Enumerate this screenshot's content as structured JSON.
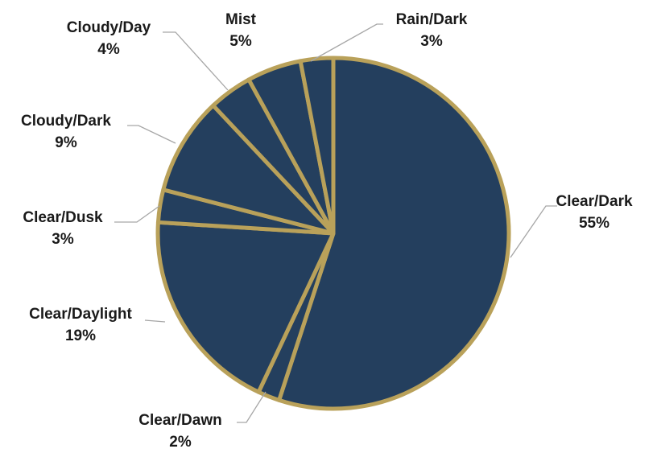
{
  "chart_data": {
    "type": "pie",
    "start_angle_deg": 0,
    "direction": "clockwise",
    "slices": [
      {
        "label": "Clear/Dark",
        "value": 55,
        "pct_label": "55%"
      },
      {
        "label": "Clear/Dawn",
        "value": 2,
        "pct_label": "2%"
      },
      {
        "label": "Clear/Daylight",
        "value": 19,
        "pct_label": "19%"
      },
      {
        "label": "Clear/Dusk",
        "value": 3,
        "pct_label": "3%"
      },
      {
        "label": "Cloudy/Dark",
        "value": 9,
        "pct_label": "9%"
      },
      {
        "label": "Cloudy/Day",
        "value": 4,
        "pct_label": "4%"
      },
      {
        "label": "Mist",
        "value": 5,
        "pct_label": "5%"
      },
      {
        "label": "Rain/Dark",
        "value": 3,
        "pct_label": "3%"
      }
    ],
    "colors": {
      "fill": "#243f5e",
      "border": "#b9a15a",
      "leader": "#a6a6a6"
    },
    "legend": "none"
  }
}
